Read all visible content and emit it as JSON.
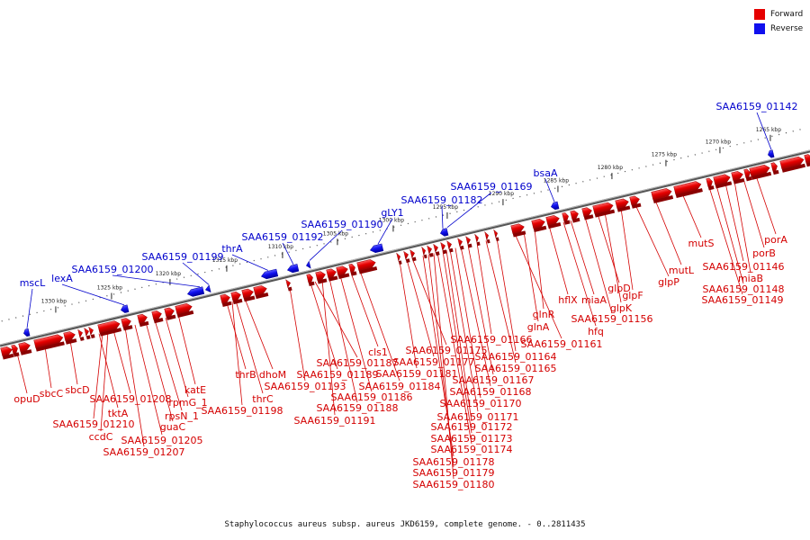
{
  "legend": [
    {
      "label": "Forward",
      "color": "#e60000"
    },
    {
      "label": "Reverse",
      "color": "#1010ee"
    }
  ],
  "caption": "Staphylococcus aureus subsp. aureus JKD6159, complete genome. - 0..2811435",
  "colors": {
    "forward": "#e60000",
    "reverse": "#1010ee",
    "backbone": "#707070"
  },
  "ticks": [
    "1330 kbp",
    "1325 kbp",
    "1320 kbp",
    "1315 kbp",
    "1310 kbp",
    "1305 kbp",
    "1300 kbp",
    "1295 kbp",
    "1290 kbp",
    "1285 kbp",
    "1280 kbp",
    "1275 kbp",
    "1270 kbp",
    "1265 kbp"
  ],
  "forward_labels": [
    "opuD",
    "sbcC",
    "sbcD",
    "tktA",
    "SAA6159_01210",
    "ccdC",
    "SAA6159_01208",
    "SAA6159_01207",
    "SAA6159_01205",
    "guaC",
    "rpsN_1",
    "rpmG_1",
    "katE",
    "thrB",
    "thrC",
    "dhoM",
    "SAA6159_01198",
    "SAA6159_01193",
    "SAA6159_01189",
    "SAA6159_01187",
    "SAA6159_01191",
    "SAA6159_01188",
    "SAA6159_01186",
    "cls1",
    "SAA6159_01184",
    "SAA6159_01181",
    "SAA6159_01177",
    "SAA6159_01175",
    "SAA6159_01178",
    "SAA6159_01179",
    "SAA6159_01180",
    "SAA6159_01174",
    "SAA6159_01173",
    "SAA6159_01172",
    "SAA6159_01171",
    "SAA6159_01170",
    "SAA6159_01168",
    "SAA6159_01167",
    "SAA6159_01166",
    "SAA6159_01165",
    "SAA6159_01164",
    "SAA6159_01161",
    "glnA",
    "glnR",
    "hflX",
    "hfq",
    "miaA",
    "SAA6159_01156",
    "glpD",
    "glpK",
    "glpF",
    "glpP",
    "mutL",
    "mutS",
    "SAA6159_01149",
    "SAA6159_01148",
    "SAA6159_01146",
    "miaB",
    "porB",
    "porA"
  ],
  "reverse_labels": [
    "mscL",
    "lexA",
    "SAA6159_01200",
    "SAA6159_01199",
    "thrA",
    "SAA6159_01192",
    "SAA6159_01190",
    "gLY1",
    "SAA6159_01182",
    "SAA6159_01169",
    "bsaA",
    "SAA6159_01142"
  ]
}
